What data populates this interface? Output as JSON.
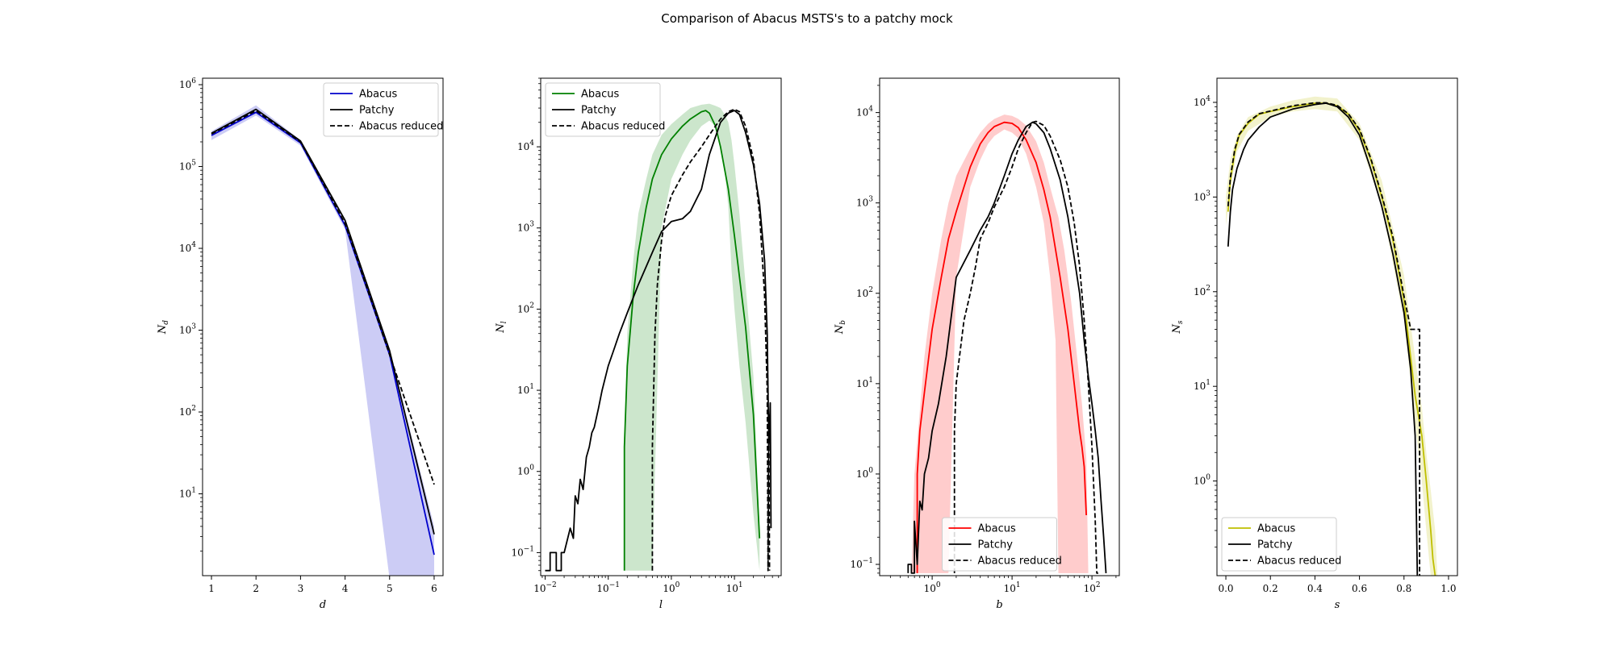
{
  "title": "Comparison of Abacus MSTS's to a patchy mock",
  "colors": {
    "d": "#0000cc",
    "l": "#008000",
    "b": "#ff0000",
    "s": "#bfbf00",
    "patchy": "#000000"
  },
  "chart_data": [
    {
      "type": "line",
      "id": "d",
      "xlabel": "d",
      "ylabel": "N_d",
      "xscale": "linear",
      "yscale": "log",
      "xlim": [
        0.8,
        6.2
      ],
      "ylim": [
        1.0,
        1200000
      ],
      "xticks": [
        {
          "v": 1,
          "label": "1"
        },
        {
          "v": 2,
          "label": "2"
        },
        {
          "v": 3,
          "label": "3"
        },
        {
          "v": 4,
          "label": "4"
        },
        {
          "v": 5,
          "label": "5"
        },
        {
          "v": 6,
          "label": "6"
        }
      ],
      "yticks": [
        {
          "v": 10,
          "base": "10",
          "exp": "1"
        },
        {
          "v": 100,
          "base": "10",
          "exp": "2"
        },
        {
          "v": 1000,
          "base": "10",
          "exp": "3"
        },
        {
          "v": 10000,
          "base": "10",
          "exp": "4"
        },
        {
          "v": 100000,
          "base": "10",
          "exp": "5"
        },
        {
          "v": 1000000,
          "base": "10",
          "exp": "6"
        }
      ],
      "legend_position": "top-right",
      "series": [
        {
          "name": "Abacus",
          "style": "solid",
          "x": [
            1,
            2,
            3,
            4,
            5,
            6
          ],
          "y": [
            240000,
            460000,
            195000,
            19000,
            500,
            1.8
          ],
          "band_low": [
            210000,
            420000,
            180000,
            17000,
            0.9,
            0.9
          ],
          "band_high": [
            270000,
            560000,
            210000,
            21000,
            600,
            4
          ]
        },
        {
          "name": "Patchy",
          "style": "solid",
          "x": [
            1,
            2,
            3,
            4,
            5,
            6
          ],
          "y": [
            255000,
            500000,
            205000,
            22000,
            560,
            3.2
          ]
        },
        {
          "name": "Abacus reduced",
          "style": "dashed",
          "x": [
            1,
            2,
            3,
            4,
            5,
            6
          ],
          "y": [
            250000,
            480000,
            200000,
            20000,
            500,
            13
          ]
        }
      ]
    },
    {
      "type": "line",
      "id": "l",
      "xlabel": "l",
      "ylabel": "N_l",
      "xscale": "log",
      "yscale": "log",
      "xlim": [
        0.0085,
        55
      ],
      "ylim": [
        0.052,
        70000
      ],
      "xticks": [
        {
          "v": 0.01,
          "base": "10",
          "exp": "−2"
        },
        {
          "v": 0.1,
          "base": "10",
          "exp": "−1"
        },
        {
          "v": 1,
          "base": "10",
          "exp": "0"
        },
        {
          "v": 10,
          "base": "10",
          "exp": "1"
        }
      ],
      "yticks": [
        {
          "v": 0.1,
          "base": "10",
          "exp": "−1"
        },
        {
          "v": 1,
          "base": "10",
          "exp": "0"
        },
        {
          "v": 10,
          "base": "10",
          "exp": "1"
        },
        {
          "v": 100,
          "base": "10",
          "exp": "2"
        },
        {
          "v": 1000,
          "base": "10",
          "exp": "3"
        },
        {
          "v": 10000,
          "base": "10",
          "exp": "4"
        }
      ],
      "legend_position": "top-left",
      "series": [
        {
          "name": "Abacus",
          "style": "solid",
          "x": [
            0.18,
            0.18,
            0.2,
            0.25,
            0.3,
            0.4,
            0.5,
            0.7,
            1,
            1.5,
            2,
            3,
            3.5,
            4,
            5,
            6,
            8,
            10,
            15,
            20,
            25
          ],
          "y": [
            0.06,
            2,
            20,
            150,
            500,
            1800,
            4000,
            8000,
            12500,
            18000,
            22000,
            27000,
            28000,
            26000,
            18000,
            10000,
            3000,
            800,
            60,
            5,
            0.15
          ],
          "band_x": [
            0.18,
            0.2,
            0.25,
            0.3,
            0.4,
            0.5,
            0.7,
            1,
            1.5,
            2,
            3,
            4,
            5,
            6,
            7,
            8,
            9,
            10,
            12,
            15,
            20,
            25
          ],
          "band_low": [
            0.06,
            0.06,
            0.06,
            0.06,
            0.06,
            0.06,
            1000,
            4000,
            8000,
            12000,
            18000,
            21000,
            18000,
            10000,
            5000,
            1800,
            300,
            100,
            20,
            4,
            0.3,
            0.06
          ],
          "band_high": [
            2,
            50,
            400,
            1500,
            4000,
            8000,
            14000,
            19000,
            25000,
            30000,
            33000,
            34000,
            32000,
            30000,
            25000,
            20000,
            12000,
            6000,
            1500,
            200,
            15,
            0.2
          ]
        },
        {
          "name": "Patchy",
          "style": "solid",
          "x": [
            0.01,
            0.012,
            0.012,
            0.015,
            0.015,
            0.018,
            0.018,
            0.02,
            0.025,
            0.028,
            0.03,
            0.033,
            0.036,
            0.04,
            0.045,
            0.05,
            0.055,
            0.06,
            0.07,
            0.08,
            0.1,
            0.12,
            0.15,
            0.2,
            0.3,
            0.5,
            0.7,
            1,
            1.5,
            2,
            3,
            4,
            6,
            8,
            10,
            12,
            15,
            20,
            25,
            30,
            33,
            35,
            37,
            38
          ],
          "y": [
            0.06,
            0.06,
            0.1,
            0.1,
            0.06,
            0.06,
            0.1,
            0.1,
            0.2,
            0.15,
            0.5,
            0.4,
            0.8,
            0.6,
            1.5,
            2.0,
            3.0,
            3.5,
            6,
            10,
            20,
            30,
            50,
            90,
            200,
            500,
            900,
            1200,
            1300,
            1600,
            3000,
            8000,
            20000,
            26000,
            28000,
            25000,
            15000,
            6000,
            2000,
            400,
            50,
            2,
            7,
            0.2
          ]
        },
        {
          "name": "Abacus reduced",
          "style": "dashed",
          "x": [
            0.5,
            0.5,
            0.55,
            0.6,
            0.7,
            0.8,
            1,
            1.5,
            2,
            3,
            4,
            5,
            6,
            8,
            10,
            12,
            15,
            20,
            25,
            30,
            33,
            34,
            35,
            36
          ],
          "y": [
            0.06,
            2,
            50,
            200,
            700,
            1400,
            2500,
            4500,
            6500,
            10000,
            14000,
            18000,
            22000,
            27000,
            29000,
            27000,
            18000,
            7000,
            1500,
            150,
            10,
            0.06,
            5,
            0.06
          ]
        }
      ]
    },
    {
      "type": "line",
      "id": "b",
      "xlabel": "b",
      "ylabel": "N_b",
      "xscale": "log",
      "yscale": "log",
      "xlim": [
        0.22,
        220
      ],
      "ylim": [
        0.075,
        24000
      ],
      "xticks": [
        {
          "v": 1,
          "base": "10",
          "exp": "0"
        },
        {
          "v": 10,
          "base": "10",
          "exp": "1"
        },
        {
          "v": 100,
          "base": "10",
          "exp": "2"
        }
      ],
      "yticks": [
        {
          "v": 0.1,
          "base": "10",
          "exp": "−1"
        },
        {
          "v": 1,
          "base": "10",
          "exp": "0"
        },
        {
          "v": 10,
          "base": "10",
          "exp": "1"
        },
        {
          "v": 100,
          "base": "10",
          "exp": "2"
        },
        {
          "v": 1000,
          "base": "10",
          "exp": "3"
        },
        {
          "v": 10000,
          "base": "10",
          "exp": "4"
        }
      ],
      "legend_position": "bottom-center",
      "series": [
        {
          "name": "Abacus",
          "style": "solid",
          "x": [
            0.65,
            0.65,
            0.7,
            0.8,
            1,
            1.3,
            1.6,
            2,
            3,
            4,
            5,
            6,
            8,
            10,
            12,
            15,
            20,
            25,
            30,
            40,
            50,
            60,
            70,
            75,
            80,
            85
          ],
          "y": [
            0.08,
            1,
            3,
            8,
            40,
            150,
            400,
            800,
            2500,
            4500,
            6000,
            7000,
            7800,
            7600,
            6800,
            5000,
            2800,
            1400,
            700,
            150,
            40,
            10,
            3,
            2,
            1.2,
            0.35
          ],
          "band_x": [
            0.55,
            0.6,
            0.7,
            0.8,
            1,
            1.3,
            1.6,
            2,
            3,
            4,
            5,
            6,
            8,
            10,
            12,
            15,
            20,
            25,
            30,
            35,
            38,
            45,
            55,
            65,
            75,
            85,
            90
          ],
          "band_low": [
            0.08,
            0.08,
            0.08,
            0.08,
            0.08,
            0.08,
            0.08,
            150,
            1500,
            3000,
            4500,
            5500,
            6500,
            6000,
            5200,
            3500,
            1500,
            600,
            150,
            30,
            0.08,
            0.08,
            0.08,
            0.08,
            0.08,
            0.08,
            0.08
          ],
          "band_high": [
            0.08,
            1,
            5,
            20,
            100,
            400,
            1000,
            2000,
            4000,
            6000,
            7500,
            8500,
            9500,
            9200,
            8500,
            7200,
            4800,
            2800,
            1500,
            900,
            700,
            300,
            80,
            20,
            6,
            1.5,
            0.08
          ]
        },
        {
          "name": "Patchy",
          "style": "solid",
          "x": [
            0.5,
            0.5,
            0.55,
            0.55,
            0.6,
            0.6,
            0.65,
            0.7,
            0.75,
            0.8,
            0.9,
            1,
            1.2,
            1.5,
            2,
            3,
            4,
            5,
            6,
            8,
            10,
            12,
            15,
            18,
            20,
            25,
            30,
            40,
            50,
            60,
            70,
            80,
            90,
            100,
            110,
            120,
            130,
            140,
            150
          ],
          "y": [
            0.08,
            0.1,
            0.1,
            0.08,
            0.08,
            0.3,
            0.1,
            0.5,
            0.4,
            1,
            1.5,
            3,
            6,
            20,
            150,
            300,
            500,
            700,
            1000,
            2000,
            3500,
            5000,
            7000,
            7800,
            7500,
            6000,
            4000,
            1800,
            700,
            250,
            100,
            30,
            12,
            6,
            3,
            1.5,
            0.5,
            0.2,
            0.08
          ]
        },
        {
          "name": "Abacus reduced",
          "style": "dashed",
          "x": [
            1.9,
            1.9,
            2.0,
            2.2,
            2.5,
            3,
            3.5,
            4,
            5,
            6,
            8,
            10,
            12,
            15,
            18,
            20,
            25,
            30,
            40,
            50,
            60,
            70,
            80,
            90,
            100,
            110,
            115,
            120
          ],
          "y": [
            0.08,
            3,
            10,
            20,
            50,
            100,
            200,
            400,
            600,
            900,
            1500,
            2500,
            4000,
            6000,
            7800,
            8000,
            7200,
            5500,
            3000,
            1500,
            600,
            200,
            50,
            10,
            2,
            0.3,
            0.08,
            0.08
          ]
        }
      ]
    },
    {
      "type": "line",
      "id": "s",
      "xlabel": "s",
      "ylabel": "N_s",
      "xscale": "linear",
      "yscale": "log",
      "xlim": [
        -0.04,
        1.04
      ],
      "ylim": [
        0.1,
        18000
      ],
      "xticks": [
        {
          "v": 0.0,
          "label": "0.0"
        },
        {
          "v": 0.2,
          "label": "0.2"
        },
        {
          "v": 0.4,
          "label": "0.4"
        },
        {
          "v": 0.6,
          "label": "0.6"
        },
        {
          "v": 0.8,
          "label": "0.8"
        },
        {
          "v": 1.0,
          "label": "1.0"
        }
      ],
      "yticks": [
        {
          "v": 1,
          "base": "10",
          "exp": "0"
        },
        {
          "v": 10,
          "base": "10",
          "exp": "1"
        },
        {
          "v": 100,
          "base": "10",
          "exp": "2"
        },
        {
          "v": 1000,
          "base": "10",
          "exp": "3"
        },
        {
          "v": 10000,
          "base": "10",
          "exp": "4"
        }
      ],
      "legend_position": "bottom-left",
      "series": [
        {
          "name": "Abacus",
          "style": "solid",
          "x": [
            0.01,
            0.02,
            0.04,
            0.06,
            0.1,
            0.15,
            0.2,
            0.3,
            0.4,
            0.45,
            0.5,
            0.55,
            0.6,
            0.65,
            0.7,
            0.75,
            0.8,
            0.85,
            0.88,
            0.9,
            0.92,
            0.93,
            0.94
          ],
          "y": [
            700,
            1500,
            3000,
            4500,
            6000,
            7500,
            8000,
            9000,
            9800,
            9800,
            9200,
            7500,
            5000,
            2500,
            1000,
            350,
            80,
            8,
            3,
            1,
            0.3,
            0.15,
            0.1
          ],
          "band_x": [
            0.0,
            0.02,
            0.05,
            0.1,
            0.2,
            0.3,
            0.4,
            0.5,
            0.6,
            0.7,
            0.8,
            0.85,
            0.88,
            0.9,
            0.92,
            0.94,
            0.95
          ],
          "band_low": [
            500,
            1200,
            3000,
            5000,
            7000,
            8000,
            8500,
            8000,
            4000,
            800,
            50,
            4,
            1,
            0.3,
            0.1,
            0.1,
            0.1
          ],
          "band_high": [
            1000,
            2500,
            4500,
            7000,
            9000,
            10500,
            11500,
            11000,
            6000,
            1500,
            150,
            20,
            6,
            2,
            0.8,
            0.3,
            0.1
          ]
        },
        {
          "name": "Patchy",
          "style": "solid",
          "x": [
            0.01,
            0.02,
            0.03,
            0.05,
            0.08,
            0.1,
            0.15,
            0.2,
            0.3,
            0.4,
            0.45,
            0.5,
            0.55,
            0.6,
            0.65,
            0.7,
            0.75,
            0.8,
            0.83,
            0.85,
            0.86
          ],
          "y": [
            300,
            700,
            1200,
            2000,
            3200,
            4000,
            5500,
            7000,
            8500,
            9500,
            9800,
            9000,
            7000,
            4500,
            2000,
            800,
            250,
            60,
            15,
            3,
            0.1
          ]
        },
        {
          "name": "Abacus reduced",
          "style": "dashed",
          "x": [
            0.01,
            0.02,
            0.04,
            0.06,
            0.1,
            0.15,
            0.2,
            0.3,
            0.4,
            0.45,
            0.5,
            0.55,
            0.6,
            0.65,
            0.7,
            0.75,
            0.8,
            0.83,
            0.85,
            0.86,
            0.87,
            0.87
          ],
          "y": [
            800,
            1600,
            3200,
            4600,
            6200,
            7600,
            8100,
            9200,
            9900,
            9900,
            9300,
            7600,
            5200,
            2600,
            1050,
            380,
            90,
            40,
            40,
            40,
            40,
            0.1
          ]
        }
      ]
    }
  ]
}
